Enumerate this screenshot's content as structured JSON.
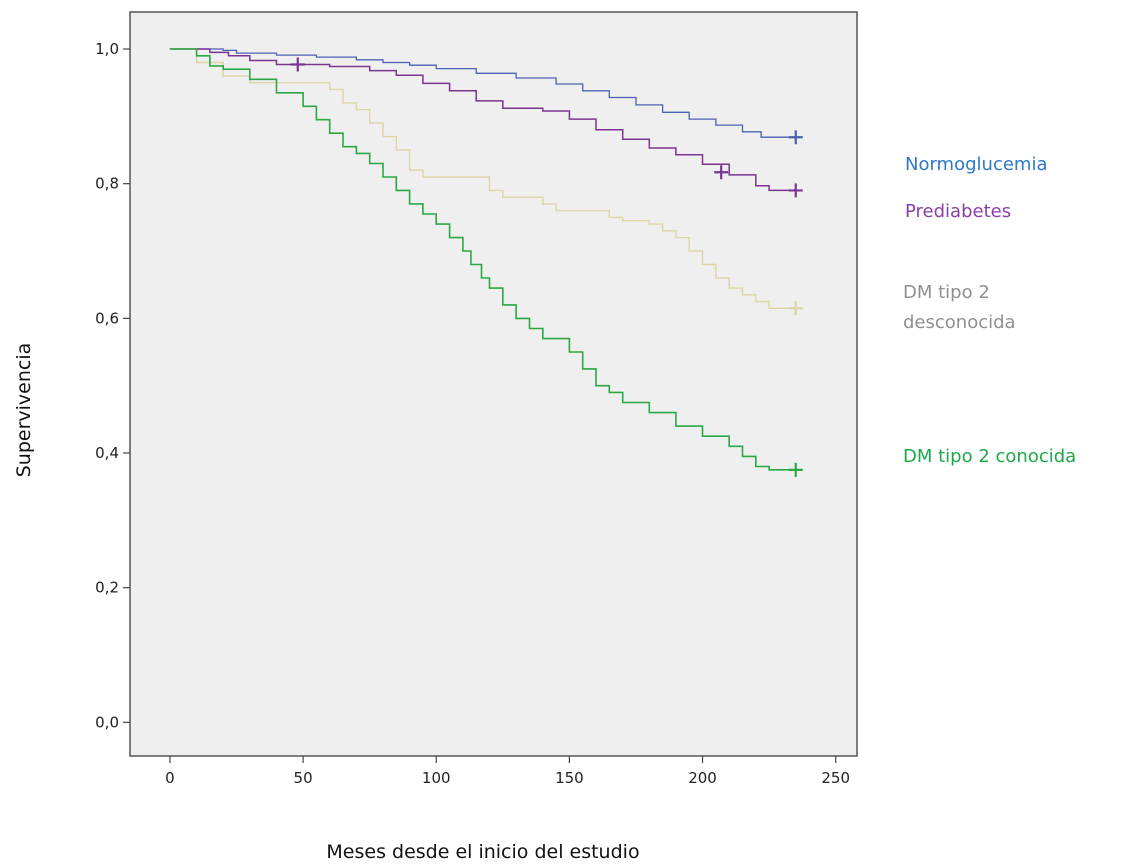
{
  "chart_data": {
    "type": "line",
    "xlabel": "Meses desde el inicio del estudio",
    "ylabel": "Supervivencia",
    "xlim": [
      -15,
      258
    ],
    "ylim": [
      -0.05,
      1.055
    ],
    "x_ticks": [
      0,
      50,
      100,
      150,
      200,
      250
    ],
    "y_ticks": [
      0.0,
      0.2,
      0.4,
      0.6,
      0.8,
      1.0
    ],
    "x_tick_labels": [
      "0",
      "50",
      "100",
      "150",
      "200",
      "250"
    ],
    "y_tick_labels": [
      "0,0",
      "0,2",
      "0,4",
      "0,6",
      "0,8",
      "1,0"
    ],
    "grid": false,
    "legend_placement": "right",
    "plot_background": "#efefef",
    "series": [
      {
        "name": "Normoglucemia",
        "color": "#4a62b4",
        "label_color": "#2e78c8",
        "stroke_width": 1.3,
        "x": [
          0,
          20,
          25,
          40,
          55,
          70,
          80,
          90,
          100,
          115,
          130,
          145,
          155,
          165,
          175,
          185,
          195,
          205,
          215,
          222,
          235
        ],
        "y": [
          1.0,
          0.998,
          0.994,
          0.991,
          0.988,
          0.984,
          0.98,
          0.976,
          0.971,
          0.964,
          0.957,
          0.948,
          0.938,
          0.928,
          0.917,
          0.906,
          0.896,
          0.887,
          0.877,
          0.869,
          0.869
        ],
        "censored": [
          [
            235,
            0.869
          ]
        ]
      },
      {
        "name": "Prediabetes",
        "color": "#7b3590",
        "label_color": "#8a3fa8",
        "stroke_width": 1.5,
        "x": [
          0,
          15,
          22,
          30,
          40,
          60,
          75,
          85,
          95,
          105,
          115,
          125,
          140,
          150,
          160,
          170,
          180,
          190,
          200,
          210,
          220,
          225,
          235
        ],
        "y": [
          1.0,
          0.995,
          0.99,
          0.983,
          0.977,
          0.974,
          0.968,
          0.961,
          0.949,
          0.938,
          0.923,
          0.912,
          0.908,
          0.896,
          0.88,
          0.866,
          0.853,
          0.843,
          0.829,
          0.813,
          0.797,
          0.79,
          0.79
        ],
        "censored": [
          [
            48,
            0.977
          ],
          [
            207,
            0.817
          ],
          [
            235,
            0.79
          ]
        ]
      },
      {
        "name": "DM tipo 2 desconocida",
        "color": "#ddd5a5",
        "label_color": "#909090",
        "stroke_width": 1.4,
        "x": [
          0,
          10,
          20,
          30,
          45,
          60,
          65,
          70,
          75,
          80,
          85,
          90,
          95,
          100,
          110,
          120,
          125,
          130,
          140,
          145,
          150,
          165,
          170,
          180,
          185,
          190,
          195,
          200,
          205,
          210,
          215,
          220,
          225,
          235
        ],
        "y": [
          1.0,
          0.98,
          0.96,
          0.95,
          0.95,
          0.94,
          0.92,
          0.91,
          0.89,
          0.87,
          0.85,
          0.82,
          0.81,
          0.81,
          0.81,
          0.79,
          0.78,
          0.78,
          0.77,
          0.76,
          0.76,
          0.75,
          0.745,
          0.74,
          0.73,
          0.72,
          0.7,
          0.68,
          0.66,
          0.645,
          0.635,
          0.625,
          0.615,
          0.615
        ],
        "censored": [
          [
            235,
            0.615
          ]
        ]
      },
      {
        "name": "DM tipo 2 conocida",
        "color": "#2ba845",
        "label_color": "#1ea84a",
        "stroke_width": 1.6,
        "x": [
          0,
          10,
          15,
          20,
          30,
          40,
          50,
          55,
          60,
          65,
          70,
          75,
          80,
          85,
          90,
          95,
          100,
          105,
          110,
          113,
          117,
          120,
          125,
          130,
          135,
          140,
          150,
          155,
          160,
          165,
          170,
          180,
          190,
          200,
          210,
          215,
          220,
          225,
          235
        ],
        "y": [
          1.0,
          0.99,
          0.975,
          0.97,
          0.955,
          0.935,
          0.915,
          0.895,
          0.875,
          0.855,
          0.845,
          0.83,
          0.81,
          0.79,
          0.77,
          0.755,
          0.74,
          0.72,
          0.7,
          0.68,
          0.66,
          0.645,
          0.62,
          0.6,
          0.585,
          0.57,
          0.55,
          0.525,
          0.5,
          0.49,
          0.475,
          0.46,
          0.44,
          0.425,
          0.41,
          0.395,
          0.38,
          0.375,
          0.375
        ],
        "censored": [
          [
            235,
            0.375
          ]
        ]
      }
    ]
  }
}
